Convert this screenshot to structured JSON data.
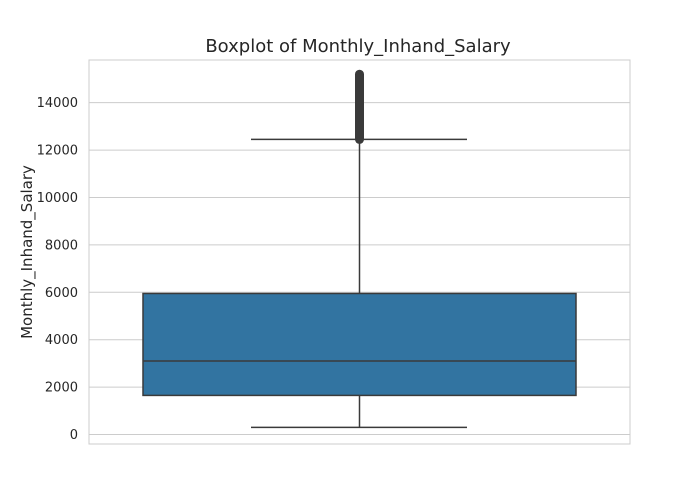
{
  "chart_data": {
    "type": "box",
    "title": "Boxplot of Monthly_Inhand_Salary",
    "xlabel": "",
    "ylabel": "Monthly_Inhand_Salary",
    "ylim": [
      -400,
      15800
    ],
    "yticks": [
      0,
      2000,
      4000,
      6000,
      8000,
      10000,
      12000,
      14000
    ],
    "grid": true,
    "colors": {
      "box_fill": "#3274a1",
      "line": "#3a3a3a",
      "grid": "#cccccc",
      "frame": "#cccccc"
    },
    "box": {
      "whisker_low": 300,
      "q1": 1650,
      "median": 3100,
      "q3": 5950,
      "whisker_high": 12450,
      "outlier_min": 12450,
      "outlier_max": 15200
    }
  }
}
